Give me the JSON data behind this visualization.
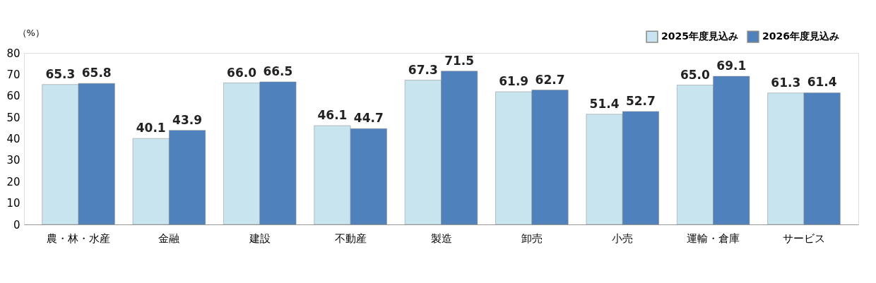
{
  "chart_data": {
    "type": "bar",
    "ylabel": "（%）",
    "categories": [
      "農・林・水産",
      "金融",
      "建設",
      "不動産",
      "製造",
      "卸売",
      "小売",
      "運輸・倉庫",
      "サービス"
    ],
    "series": [
      {
        "name": "2025年度見込み",
        "color": "#c8e4ef",
        "values": [
          65.3,
          40.1,
          66.0,
          46.1,
          67.3,
          61.9,
          51.4,
          65.0,
          61.3
        ],
        "value_labels": [
          "65.3",
          "40.1",
          "66.0",
          "46.1",
          "67.3",
          "61.9",
          "51.4",
          "65.0",
          "61.3"
        ]
      },
      {
        "name": "2026年度見込み",
        "color": "#4f81bd",
        "values": [
          65.8,
          43.9,
          66.5,
          44.7,
          71.5,
          62.7,
          52.7,
          69.1,
          61.4
        ],
        "value_labels": [
          "65.8",
          "43.9",
          "66.5",
          "44.7",
          "71.5",
          "62.7",
          "52.7",
          "69.1",
          "61.4"
        ]
      }
    ],
    "ylim": [
      0,
      80
    ],
    "yticks": [
      0,
      10,
      20,
      30,
      40,
      50,
      60,
      70,
      80
    ],
    "grid": false,
    "legend": "top right"
  }
}
